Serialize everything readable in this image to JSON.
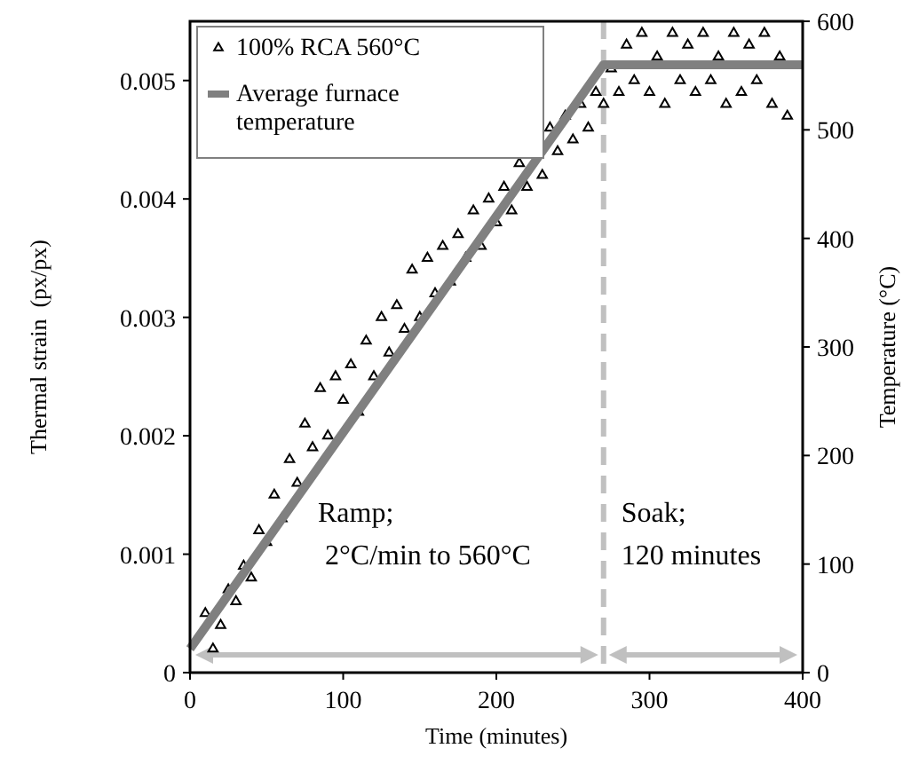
{
  "chart_data": {
    "type": "scatter",
    "xlabel": "Time (minutes)",
    "ylabel": "Thermal strain  (px/px)",
    "y2label": "Temperature (°C)",
    "xlim": [
      0,
      400
    ],
    "xticks": [
      0,
      100,
      200,
      300,
      400
    ],
    "ylim": [
      0,
      0.0055
    ],
    "yticks": [
      0,
      0.001,
      0.002,
      0.003,
      0.004,
      0.005
    ],
    "y2lim": [
      0,
      600
    ],
    "y2ticks": [
      0,
      100,
      200,
      300,
      400,
      500,
      600
    ],
    "legend": "top left",
    "grid": false,
    "series": [
      {
        "name": "100% RCA 560°C",
        "marker": "triangle",
        "color": "#000000",
        "x": [
          10,
          15,
          20,
          25,
          30,
          35,
          40,
          45,
          50,
          55,
          60,
          65,
          70,
          75,
          80,
          85,
          90,
          95,
          100,
          105,
          110,
          115,
          120,
          125,
          130,
          135,
          140,
          145,
          150,
          155,
          160,
          165,
          170,
          175,
          180,
          185,
          190,
          195,
          200,
          205,
          210,
          215,
          220,
          230,
          235,
          240,
          245,
          250,
          255,
          260,
          265,
          270,
          275,
          280,
          285,
          290,
          295,
          300,
          305,
          310,
          315,
          320,
          325,
          330,
          335,
          340,
          345,
          350,
          355,
          360,
          365,
          370,
          375,
          380,
          385,
          390
        ],
        "values": [
          0.0005,
          0.0002,
          0.0004,
          0.0007,
          0.0006,
          0.0009,
          0.0008,
          0.0012,
          0.0011,
          0.0015,
          0.0013,
          0.0018,
          0.0016,
          0.0021,
          0.0019,
          0.0024,
          0.002,
          0.0025,
          0.0023,
          0.0026,
          0.0022,
          0.0028,
          0.0025,
          0.003,
          0.0027,
          0.0031,
          0.0029,
          0.0034,
          0.003,
          0.0035,
          0.0032,
          0.0036,
          0.0033,
          0.0037,
          0.0035,
          0.0039,
          0.0036,
          0.004,
          0.0038,
          0.0041,
          0.0039,
          0.0043,
          0.0041,
          0.0042,
          0.0046,
          0.0044,
          0.0047,
          0.0045,
          0.0048,
          0.0046,
          0.0049,
          0.0048,
          0.0051,
          0.0049,
          0.0053,
          0.005,
          0.0054,
          0.0049,
          0.0052,
          0.0048,
          0.0054,
          0.005,
          0.0053,
          0.0049,
          0.0054,
          0.005,
          0.0052,
          0.0048,
          0.0054,
          0.0049,
          0.0053,
          0.005,
          0.0054,
          0.0048,
          0.0052,
          0.0047
        ]
      },
      {
        "name": "Average furnace temperature",
        "type": "line",
        "axis": "y2",
        "color": "#808080",
        "x": [
          0,
          270,
          400
        ],
        "values": [
          22,
          560,
          560
        ]
      }
    ],
    "ref_lines": [
      {
        "axis": "x",
        "value": 270,
        "color": "#c0c0c0",
        "line_style": "dashed"
      }
    ],
    "annotations": [
      "Ramp;\n 2°C/min to 560°C",
      "Soak;\n120 minutes"
    ]
  }
}
